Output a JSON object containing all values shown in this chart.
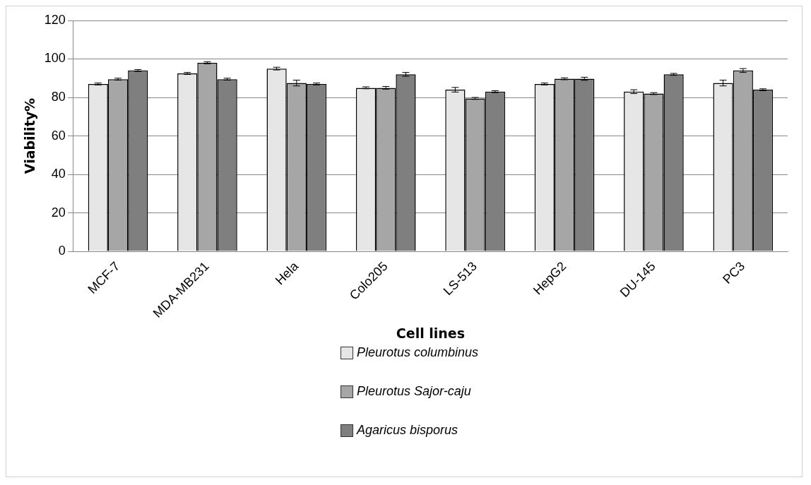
{
  "chart_data": {
    "type": "bar",
    "xlabel": "Cell lines",
    "ylabel": "Viability%",
    "categories": [
      "MCF-7",
      "MDA-MB231",
      "Hela",
      "Colo205",
      "LS-513",
      "HepG2",
      "DU-145",
      "PC3"
    ],
    "series": [
      {
        "name": "Pleurotus columbinus",
        "color": "#e6e6e6",
        "values": [
          87,
          92.5,
          95,
          85,
          84,
          87,
          83,
          87.5
        ],
        "errors": [
          0.5,
          0.5,
          0.7,
          0.5,
          1.2,
          0.5,
          1,
          1.5
        ]
      },
      {
        "name": "Pleurotus Sajor-caju",
        "color": "#a6a6a6",
        "values": [
          89.5,
          98,
          87.5,
          85,
          79.5,
          89.7,
          82,
          94
        ],
        "errors": [
          0.5,
          0.5,
          1.5,
          0.7,
          0.5,
          0.5,
          0.5,
          1
        ]
      },
      {
        "name": "Agaricus bisporus",
        "color": "#7f7f7f",
        "values": [
          94,
          89.5,
          87,
          92,
          83,
          89.7,
          92,
          84
        ],
        "errors": [
          0.5,
          0.5,
          0.5,
          1,
          0.5,
          0.8,
          0.5,
          0.5
        ]
      }
    ],
    "ylim": [
      0,
      120
    ],
    "yticks": [
      0,
      20,
      40,
      60,
      80,
      100,
      120
    ],
    "grid": "y",
    "legend": "bottom"
  }
}
